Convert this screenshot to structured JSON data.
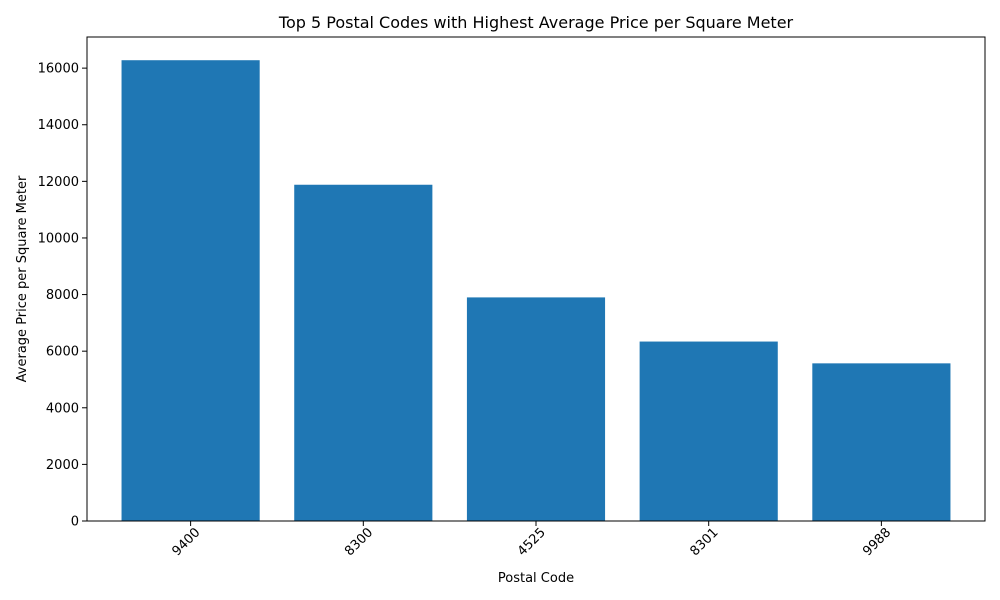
{
  "chart_data": {
    "type": "bar",
    "title": "Top 5 Postal Codes with Highest Average Price per Square Meter",
    "xlabel": "Postal Code",
    "ylabel": "Average Price per Square Meter",
    "categories": [
      "9400",
      "8300",
      "4525",
      "8301",
      "9988"
    ],
    "values": [
      16280,
      11880,
      7900,
      6340,
      5570
    ],
    "ylim": [
      0,
      17100
    ],
    "yticks": [
      0,
      2000,
      4000,
      6000,
      8000,
      10000,
      12000,
      14000,
      16000
    ],
    "ytick_labels": [
      "0",
      "2000",
      "4000",
      "6000",
      "8000",
      "10000",
      "12000",
      "14000",
      "16000"
    ],
    "grid": false,
    "bar_color": "#1f77b4",
    "xtick_rotation_deg": 45
  }
}
